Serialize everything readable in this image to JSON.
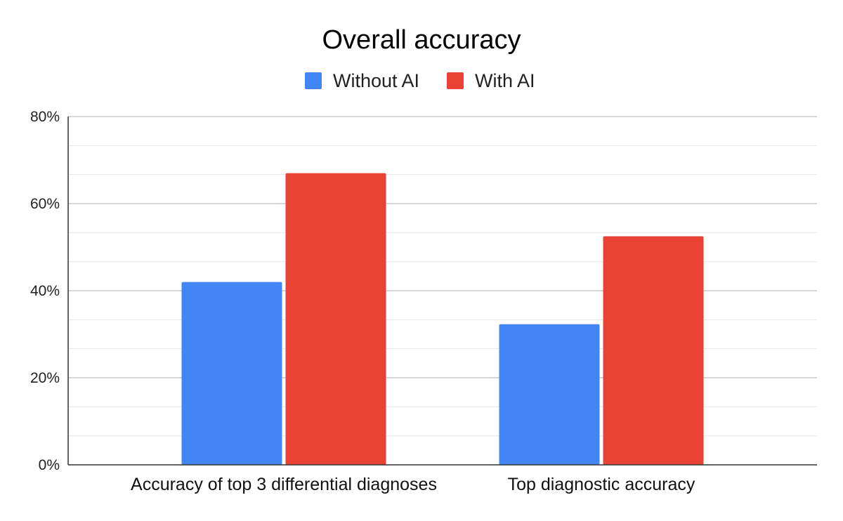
{
  "chart_data": {
    "type": "bar",
    "title": "Overall accuracy",
    "xlabel": "",
    "ylabel": "",
    "categories": [
      "Accuracy of top 3 differential diagnoses",
      "Top diagnostic accuracy"
    ],
    "series": [
      {
        "name": "Without AI",
        "color": "#4285f4",
        "values": [
          42,
          32.3
        ]
      },
      {
        "name": "With AI",
        "color": "#ea4335",
        "values": [
          67,
          52.5
        ]
      }
    ],
    "ylim": [
      0,
      80
    ],
    "y_ticks": [
      0,
      20,
      40,
      60,
      80
    ],
    "y_tick_labels": [
      "0%",
      "20%",
      "40%",
      "60%",
      "80%"
    ],
    "y_minor_step": 6.6667,
    "grid": true,
    "legend_position": "top-center"
  }
}
